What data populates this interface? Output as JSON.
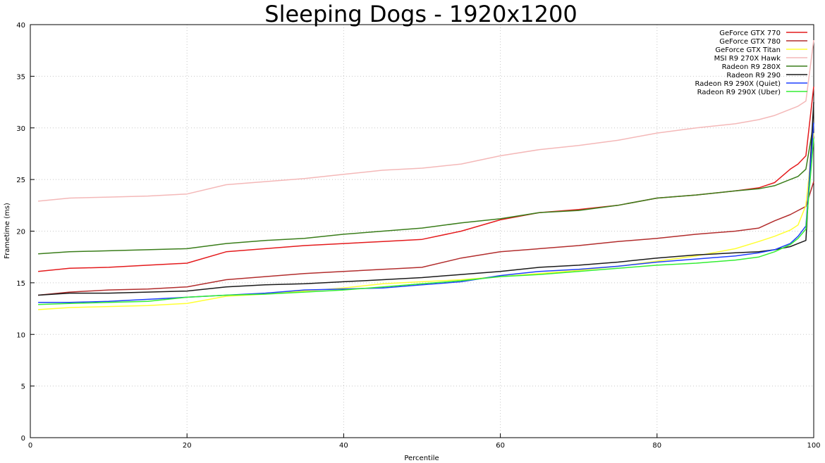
{
  "chart_data": {
    "type": "line",
    "title": "Sleeping Dogs - 1920x1200",
    "xlabel": "Percentile",
    "ylabel": "Frametime (ms)",
    "xlim": [
      0,
      100
    ],
    "ylim": [
      0,
      40
    ],
    "xticks": [
      0,
      20,
      40,
      60,
      80,
      100
    ],
    "yticks": [
      0,
      5,
      10,
      15,
      20,
      25,
      30,
      35,
      40
    ],
    "grid": true,
    "legend_position": "top-right",
    "x": [
      1,
      5,
      10,
      15,
      20,
      25,
      30,
      35,
      40,
      45,
      50,
      55,
      60,
      65,
      70,
      75,
      80,
      85,
      90,
      93,
      95,
      97,
      98,
      99,
      100
    ],
    "series": [
      {
        "name": "GeForce GTX 770",
        "color": "#e41a1c",
        "values": [
          16.1,
          16.4,
          16.5,
          16.7,
          16.9,
          18.0,
          18.3,
          18.6,
          18.8,
          19.0,
          19.2,
          20.0,
          21.1,
          21.8,
          22.1,
          22.5,
          23.2,
          23.5,
          23.9,
          24.2,
          24.7,
          26.0,
          26.5,
          27.3,
          34.0
        ]
      },
      {
        "name": "GeForce GTX 780",
        "color": "#b22d2d",
        "values": [
          13.8,
          14.1,
          14.3,
          14.4,
          14.6,
          15.3,
          15.6,
          15.9,
          16.1,
          16.3,
          16.5,
          17.4,
          18.0,
          18.3,
          18.6,
          19.0,
          19.3,
          19.7,
          20.0,
          20.3,
          21.0,
          21.6,
          22.0,
          22.4,
          24.8
        ]
      },
      {
        "name": "GeForce GTX Titan",
        "color": "#ffff33",
        "values": [
          12.4,
          12.6,
          12.7,
          12.8,
          13.0,
          13.7,
          13.9,
          14.2,
          14.5,
          14.9,
          15.1,
          15.3,
          15.6,
          15.9,
          16.2,
          16.6,
          17.1,
          17.6,
          18.3,
          19.0,
          19.5,
          20.1,
          20.6,
          22.5,
          29.5
        ]
      },
      {
        "name": "MSI R9 270X Hawk",
        "color": "#f4b8b8",
        "values": [
          22.9,
          23.2,
          23.3,
          23.4,
          23.6,
          24.5,
          24.8,
          25.1,
          25.5,
          25.9,
          26.1,
          26.5,
          27.3,
          27.9,
          28.3,
          28.8,
          29.5,
          30.0,
          30.4,
          30.8,
          31.2,
          31.8,
          32.1,
          32.6,
          38.5
        ]
      },
      {
        "name": "Radeon R9 280X",
        "color": "#3a7d1a",
        "values": [
          17.8,
          18.0,
          18.1,
          18.2,
          18.3,
          18.8,
          19.1,
          19.3,
          19.7,
          20.0,
          20.3,
          20.8,
          21.2,
          21.8,
          22.0,
          22.5,
          23.2,
          23.5,
          23.9,
          24.1,
          24.4,
          25.0,
          25.3,
          26.0,
          30.5
        ]
      },
      {
        "name": "Radeon R9 290",
        "color": "#1a1a1a",
        "values": [
          13.8,
          14.0,
          14.0,
          14.1,
          14.2,
          14.6,
          14.8,
          14.9,
          15.1,
          15.3,
          15.5,
          15.8,
          16.1,
          16.5,
          16.7,
          17.0,
          17.4,
          17.7,
          17.9,
          18.0,
          18.2,
          18.5,
          18.8,
          19.1,
          32.5
        ]
      },
      {
        "name": "Radeon R9 290X (Quiet)",
        "color": "#1f3fff",
        "values": [
          13.1,
          13.1,
          13.2,
          13.4,
          13.6,
          13.8,
          14.0,
          14.3,
          14.4,
          14.5,
          14.8,
          15.1,
          15.7,
          16.1,
          16.3,
          16.6,
          17.0,
          17.3,
          17.6,
          17.9,
          18.2,
          18.8,
          19.5,
          20.5,
          30.5
        ]
      },
      {
        "name": "Radeon R9 290X (Uber)",
        "color": "#33ee33",
        "values": [
          12.9,
          13.0,
          13.1,
          13.2,
          13.6,
          13.8,
          13.9,
          14.1,
          14.3,
          14.6,
          14.9,
          15.2,
          15.6,
          15.8,
          16.1,
          16.4,
          16.7,
          16.9,
          17.2,
          17.5,
          18.0,
          18.7,
          19.3,
          20.2,
          29.0
        ]
      }
    ]
  }
}
